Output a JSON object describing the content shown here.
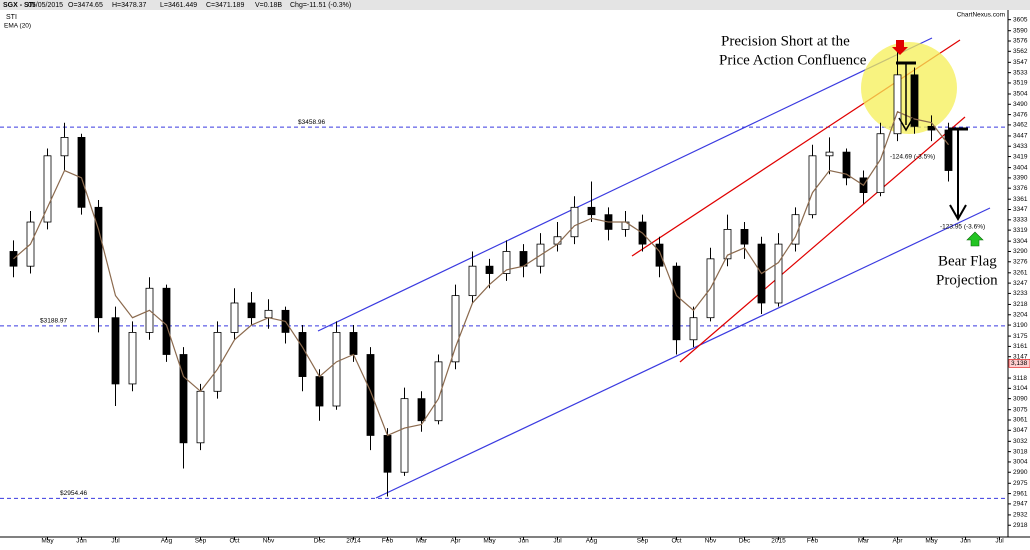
{
  "header": {
    "title": "SGX - STI",
    "date": "05/05/2015",
    "open": "O=3474.65",
    "high": "H=3478.37",
    "low": "L=3461.449",
    "close": "C=3471.189",
    "volume": "V=0.18B",
    "change": "Chg=-11.51 (-0.3%)",
    "symbol": "STI",
    "source": "ChartNexus.com"
  },
  "annotations": {
    "headline_1": "Precision Short at the",
    "headline_2": "Price Action Confluence",
    "drop_1": "-124.69 (-3.5%)",
    "drop_2": "-123.95 (-3.6%)",
    "projection_1": "Bear Flag",
    "projection_2": "Projection"
  },
  "chart_data": {
    "type": "candlestick",
    "categories": [
      null,
      null,
      "May",
      null,
      "Jun",
      null,
      "Jul",
      null,
      null,
      "Aug",
      null,
      "Sep",
      null,
      "Oct",
      null,
      "Nov",
      null,
      null,
      "Dec",
      null,
      "2014",
      null,
      "Feb",
      null,
      "Mar",
      null,
      "Apr",
      null,
      "May",
      null,
      "Jun",
      null,
      "Jul",
      null,
      "Aug",
      null,
      null,
      "Sep",
      null,
      "Oct",
      null,
      "Nov",
      null,
      "Dec",
      null,
      "2015",
      null,
      "Feb",
      null,
      null,
      "Mar",
      null,
      "Apr",
      null,
      "May",
      null,
      "Jun",
      null,
      "Jul"
    ],
    "candles": [
      [
        3290,
        3305,
        3255,
        3270
      ],
      [
        3270,
        3345,
        3260,
        3330
      ],
      [
        3330,
        3430,
        3320,
        3420
      ],
      [
        3420,
        3465,
        3400,
        3445
      ],
      [
        3445,
        3450,
        3340,
        3350
      ],
      [
        3350,
        3360,
        3180,
        3200
      ],
      [
        3200,
        3215,
        3080,
        3110
      ],
      [
        3110,
        3195,
        3100,
        3180
      ],
      [
        3180,
        3255,
        3170,
        3240
      ],
      [
        3240,
        3245,
        3140,
        3150
      ],
      [
        3150,
        3160,
        2995,
        3030
      ],
      [
        3030,
        3110,
        3020,
        3100
      ],
      [
        3100,
        3195,
        3090,
        3180
      ],
      [
        3180,
        3240,
        3170,
        3220
      ],
      [
        3220,
        3235,
        3190,
        3200
      ],
      [
        3200,
        3225,
        3185,
        3210
      ],
      [
        3210,
        3215,
        3165,
        3180
      ],
      [
        3180,
        3190,
        3100,
        3120
      ],
      [
        3120,
        3130,
        3060,
        3080
      ],
      [
        3080,
        3195,
        3075,
        3180
      ],
      [
        3180,
        3190,
        3140,
        3150
      ],
      [
        3150,
        3160,
        3020,
        3040
      ],
      [
        3040,
        3050,
        2957,
        2990
      ],
      [
        2990,
        3105,
        2985,
        3090
      ],
      [
        3090,
        3100,
        3045,
        3060
      ],
      [
        3060,
        3150,
        3055,
        3140
      ],
      [
        3140,
        3245,
        3130,
        3230
      ],
      [
        3230,
        3290,
        3220,
        3270
      ],
      [
        3270,
        3280,
        3240,
        3260
      ],
      [
        3260,
        3305,
        3250,
        3290
      ],
      [
        3290,
        3300,
        3255,
        3270
      ],
      [
        3270,
        3315,
        3260,
        3300
      ],
      [
        3300,
        3330,
        3290,
        3310
      ],
      [
        3310,
        3365,
        3300,
        3350
      ],
      [
        3350,
        3385,
        3330,
        3340
      ],
      [
        3340,
        3350,
        3305,
        3320
      ],
      [
        3320,
        3345,
        3310,
        3330
      ],
      [
        3330,
        3340,
        3290,
        3300
      ],
      [
        3300,
        3310,
        3255,
        3270
      ],
      [
        3270,
        3275,
        3150,
        3170
      ],
      [
        3170,
        3215,
        3160,
        3200
      ],
      [
        3200,
        3295,
        3195,
        3280
      ],
      [
        3280,
        3340,
        3270,
        3320
      ],
      [
        3320,
        3330,
        3280,
        3300
      ],
      [
        3300,
        3310,
        3205,
        3220
      ],
      [
        3220,
        3315,
        3215,
        3300
      ],
      [
        3300,
        3350,
        3290,
        3340
      ],
      [
        3340,
        3435,
        3335,
        3420
      ],
      [
        3420,
        3445,
        3395,
        3425
      ],
      [
        3425,
        3430,
        3380,
        3390
      ],
      [
        3390,
        3400,
        3355,
        3370
      ],
      [
        3370,
        3465,
        3365,
        3450
      ],
      [
        3450,
        3565,
        3440,
        3530
      ],
      [
        3530,
        3540,
        3450,
        3460
      ],
      [
        3460,
        3475,
        3440,
        3455
      ],
      [
        3455,
        3465,
        3385,
        3400
      ],
      null,
      null,
      null
    ],
    "ema": {
      "name": "EMA (20)",
      "color": "#8b6a4e",
      "values": [
        3280,
        3300,
        3350,
        3400,
        3390,
        3320,
        3230,
        3200,
        3210,
        3190,
        3120,
        3100,
        3130,
        3170,
        3190,
        3200,
        3195,
        3160,
        3120,
        3140,
        3150,
        3100,
        3040,
        3050,
        3055,
        3090,
        3160,
        3220,
        3245,
        3265,
        3270,
        3285,
        3300,
        3325,
        3335,
        3330,
        3330,
        3315,
        3290,
        3230,
        3210,
        3240,
        3285,
        3295,
        3260,
        3275,
        3310,
        3370,
        3400,
        3395,
        3380,
        3415,
        3480,
        3470,
        3465,
        3435,
        null,
        null,
        null
      ]
    },
    "levels": [
      {
        "value": 3458.96,
        "label": "$3458.96"
      },
      {
        "value": 3188.97,
        "label": "$3188.97"
      },
      {
        "value": 2954.46,
        "label": "$2954.46"
      }
    ],
    "last_price": {
      "value": 3138,
      "label": "3,138"
    },
    "ylim": [
      2902,
      3629
    ],
    "yticks": [
      3605,
      3590,
      3576,
      3562,
      3547,
      3533,
      3519,
      3504,
      3490,
      3476,
      3462,
      3447,
      3433,
      3419,
      3404,
      3390,
      3376,
      3361,
      3347,
      3333,
      3319,
      3304,
      3290,
      3276,
      3261,
      3247,
      3233,
      3218,
      3204,
      3190,
      3175,
      3161,
      3147,
      3118,
      3104,
      3090,
      3075,
      3061,
      3047,
      3032,
      3018,
      3004,
      2990,
      2975,
      2961,
      2947,
      2932,
      2918
    ]
  }
}
